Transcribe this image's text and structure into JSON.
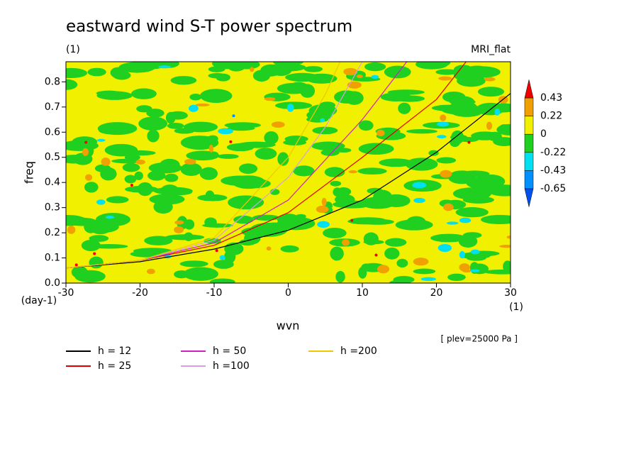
{
  "chart_data": {
    "type": "line",
    "title": "eastward wind S-T power spectrum",
    "subtitle": "(1)",
    "model_label": "MRI_flat",
    "y_label": "freq",
    "y_unit": "(day-1)",
    "x_label": "wvn",
    "x_unit": "(1)",
    "annotation": "[ plev=25000 Pa ]",
    "xlim": [
      -30,
      30
    ],
    "xticks": [
      -30,
      -20,
      -10,
      0,
      10,
      20,
      30
    ],
    "ylim": [
      0,
      0.88
    ],
    "yticks": [
      {
        "value": 0,
        "label": "0.0"
      },
      0.1,
      0.2,
      0.3,
      0.4,
      0.5,
      0.6,
      0.7,
      0.8
    ],
    "colorbar": {
      "levels": [
        0.43,
        0.22,
        0,
        -0.22,
        -0.43,
        -0.65
      ],
      "colors": [
        "#f00000",
        "#f0a000",
        "#f0f000",
        "#20d020",
        "#00e0f0",
        "#0090ff",
        "#0050f0"
      ]
    },
    "series": [
      {
        "name": "h = 12",
        "color": "#000000",
        "x": [
          -30,
          -20,
          -10,
          0,
          10,
          20,
          30
        ],
        "values": [
          0.06,
          0.085,
          0.135,
          0.21,
          0.33,
          0.52,
          0.754
        ]
      },
      {
        "name": "h = 25",
        "color": "#e00000",
        "x": [
          -30,
          -20,
          -10,
          0,
          10,
          20,
          24
        ],
        "values": [
          0.06,
          0.09,
          0.15,
          0.28,
          0.5,
          0.73,
          0.88
        ]
      },
      {
        "name": "h = 50",
        "color": "#d020c0",
        "x": [
          -30,
          -20,
          -10,
          0,
          10,
          16
        ],
        "values": [
          0.06,
          0.09,
          0.16,
          0.33,
          0.65,
          0.88
        ]
      },
      {
        "name": "h =100",
        "color": "#d8a0e0",
        "x": [
          -30,
          -20,
          -10,
          0,
          5,
          10
        ],
        "values": [
          0.06,
          0.09,
          0.17,
          0.42,
          0.62,
          0.88
        ]
      },
      {
        "name": "h =200",
        "color": "#f0c800",
        "x": [
          -30,
          -20,
          -10,
          0,
          5,
          7
        ],
        "values": [
          0.06,
          0.09,
          0.18,
          0.5,
          0.75,
          0.88
        ]
      }
    ]
  }
}
